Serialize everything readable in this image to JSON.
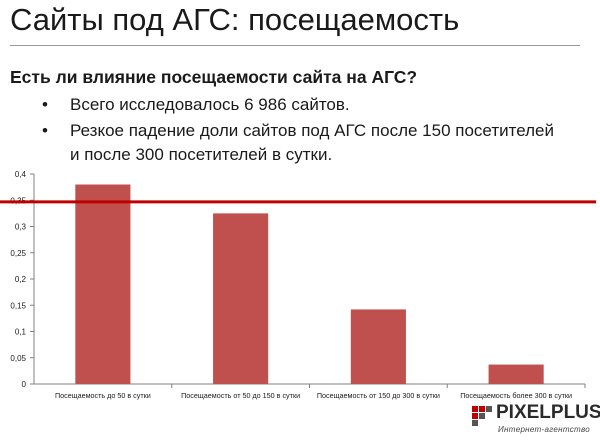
{
  "slide": {
    "title": "Сайты под АГС: посещаемость",
    "question": "Есть ли влияние посещаемости сайта на АГС?",
    "bullets": [
      "Всего исследовалось 6 986 сайтов.",
      "Резкое падение доли сайтов под АГС после 150 посетителей и после 300 посетителей в сутки."
    ]
  },
  "logo": {
    "name": "PIXELPLUS",
    "tagline": "Интернет-агентство"
  },
  "colors": {
    "bar": "#c0504d",
    "threshold_line": "#c00000",
    "axis": "#808080"
  },
  "chart_data": {
    "type": "bar",
    "categories": [
      "Посещаемость до 50 в сутки",
      "Посещаемость от 50 до 150 в сутки",
      "Посещаемость от 150 до 300 в сутки",
      "Посещаемость более 300 в сутки"
    ],
    "values": [
      0.38,
      0.325,
      0.142,
      0.037
    ],
    "ylim": [
      0,
      0.4
    ],
    "yticks": [
      "0",
      "0,05",
      "0,1",
      "0,15",
      "0,2",
      "0,25",
      "0,3",
      "0,35",
      "0,4"
    ],
    "reference_line": 0.347,
    "grid": false,
    "legend": "none"
  }
}
